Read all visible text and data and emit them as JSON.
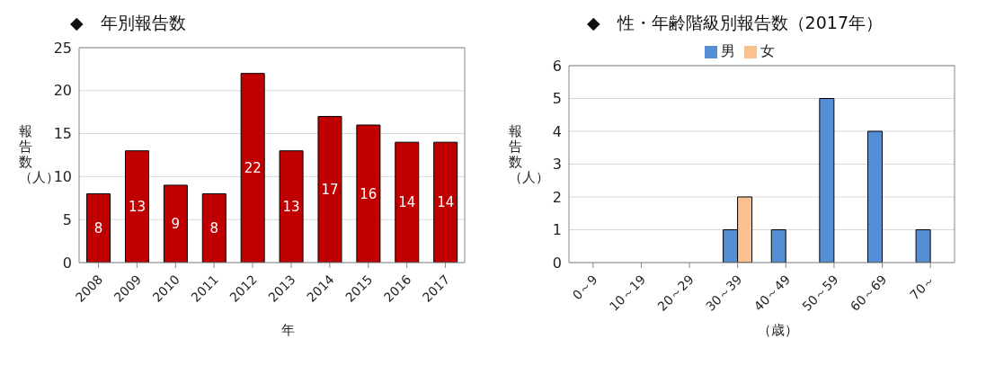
{
  "chart_data": [
    {
      "type": "bar",
      "title": "◆　年別報告数",
      "xlabel": "年",
      "ylabel": "報告数（人）",
      "categories": [
        "2008",
        "2009",
        "2010",
        "2011",
        "2012",
        "2013",
        "2014",
        "2015",
        "2016",
        "2017"
      ],
      "values": [
        8,
        13,
        9,
        8,
        22,
        13,
        17,
        16,
        14,
        14
      ],
      "color": "#c00000",
      "ylim": [
        0,
        25
      ],
      "yticks": [
        0,
        5,
        10,
        15,
        20,
        25
      ],
      "grid": "y",
      "data_labels": true
    },
    {
      "type": "bar",
      "title": "◆　性・年齢階級別報告数（2017年）",
      "xlabel": "（歳）",
      "ylabel": "報告数（人）",
      "categories": [
        "0～9",
        "10～19",
        "20～29",
        "30～39",
        "40～49",
        "50～59",
        "60～69",
        "70～"
      ],
      "series": [
        {
          "name": "男",
          "color": "#558ed5",
          "values": [
            0,
            0,
            0,
            1,
            1,
            5,
            4,
            1
          ]
        },
        {
          "name": "女",
          "color": "#fac090",
          "values": [
            0,
            0,
            0,
            2,
            0,
            0,
            0,
            0
          ]
        }
      ],
      "ylim": [
        0,
        6
      ],
      "yticks": [
        0,
        1,
        2,
        3,
        4,
        5,
        6
      ],
      "grid": "y",
      "legend": "top"
    }
  ]
}
